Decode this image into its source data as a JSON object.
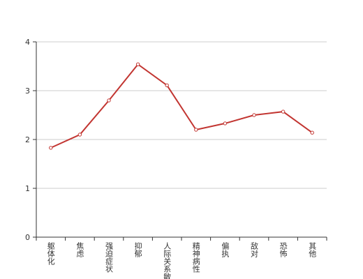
{
  "chart_data": {
    "type": "line",
    "categories": [
      "躯体化",
      "焦虑",
      "强迫症状",
      "抑郁",
      "人际关系敏感",
      "精神病性",
      "偏执",
      "敌对",
      "恐怖",
      "其他"
    ],
    "values": [
      1.83,
      2.1,
      2.8,
      3.54,
      3.11,
      2.2,
      2.33,
      2.5,
      2.57,
      2.14
    ],
    "color": "#c23531",
    "ylim": [
      0,
      4
    ],
    "yticks": [
      0,
      1,
      2,
      3,
      4
    ],
    "grid": true
  }
}
